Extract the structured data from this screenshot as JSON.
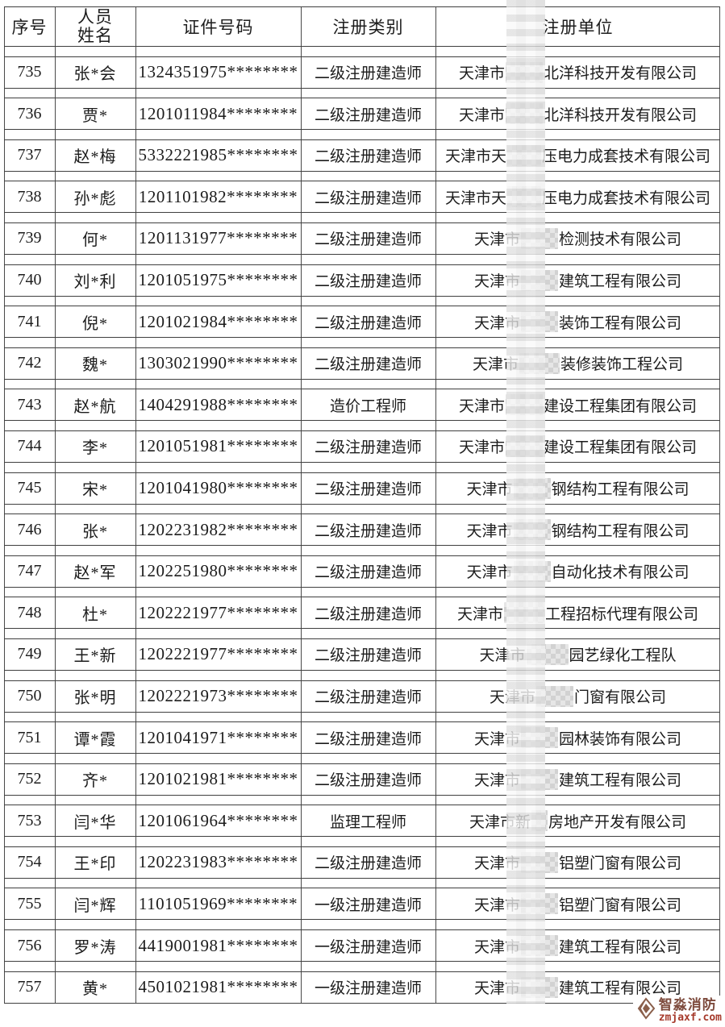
{
  "table": {
    "columns": [
      "序号",
      "人员\n姓名",
      "证件号码",
      "注册类别",
      "注册单位"
    ],
    "rows": [
      {
        "no": "735",
        "name": "张*会",
        "id": "1324351975********",
        "category": "二级注册建造师",
        "unit_prefix": "天津市",
        "unit_masked": true,
        "unit_suffix": "北洋科技开发有限公司",
        "blur_w": 46
      },
      {
        "no": "736",
        "name": "贾*",
        "id": "1201011984********",
        "category": "二级注册建造师",
        "unit_prefix": "天津市",
        "unit_masked": true,
        "unit_suffix": "北洋科技开发有限公司",
        "blur_w": 46
      },
      {
        "no": "737",
        "name": "赵*梅",
        "id": "5332221985********",
        "category": "二级注册建造师",
        "unit_prefix": "天津市天",
        "unit_masked": true,
        "unit_suffix": "压电力成套技术有限公司",
        "blur_w": 42
      },
      {
        "no": "738",
        "name": "孙*彪",
        "id": "1201101982********",
        "category": "二级注册建造师",
        "unit_prefix": "天津市天",
        "unit_masked": true,
        "unit_suffix": "压电力成套技术有限公司",
        "blur_w": 42
      },
      {
        "no": "739",
        "name": "何*",
        "id": "1201131977********",
        "category": "二级注册建造师",
        "unit_prefix": "天津市",
        "unit_masked": true,
        "unit_suffix": "检测技术有限公司",
        "blur_w": 46
      },
      {
        "no": "740",
        "name": "刘*利",
        "id": "1201051975********",
        "category": "二级注册建造师",
        "unit_prefix": "天津市",
        "unit_masked": true,
        "unit_suffix": "建筑工程有限公司",
        "blur_w": 46
      },
      {
        "no": "741",
        "name": "倪*",
        "id": "1201021984********",
        "category": "二级注册建造师",
        "unit_prefix": "天津市",
        "unit_masked": true,
        "unit_suffix": "装饰工程有限公司",
        "blur_w": 46
      },
      {
        "no": "742",
        "name": "魏*",
        "id": "1303021990********",
        "category": "二级注册建造师",
        "unit_prefix": "天津市",
        "unit_masked": true,
        "unit_suffix": "装修装饰工程公司",
        "blur_w": 50
      },
      {
        "no": "743",
        "name": "赵*航",
        "id": "1404291988********",
        "category": "造价工程师",
        "unit_prefix": "天津市",
        "unit_masked": true,
        "unit_suffix": "建设工程集团有限公司",
        "blur_w": 46
      },
      {
        "no": "744",
        "name": "李*",
        "id": "1201051981********",
        "category": "二级注册建造师",
        "unit_prefix": "天津市",
        "unit_masked": true,
        "unit_suffix": "建设工程集团有限公司",
        "blur_w": 46
      },
      {
        "no": "745",
        "name": "宋*",
        "id": "1201041980********",
        "category": "二级注册建造师",
        "unit_prefix": "天津市",
        "unit_masked": true,
        "unit_suffix": "钢结构工程有限公司",
        "blur_w": 46
      },
      {
        "no": "746",
        "name": "张*",
        "id": "1202231982********",
        "category": "二级注册建造师",
        "unit_prefix": "天津市",
        "unit_masked": true,
        "unit_suffix": "钢结构工程有限公司",
        "blur_w": 46
      },
      {
        "no": "747",
        "name": "赵*军",
        "id": "1202251980********",
        "category": "二级注册建造师",
        "unit_prefix": "天津市",
        "unit_masked": true,
        "unit_suffix": "自动化技术有限公司",
        "blur_w": 46
      },
      {
        "no": "748",
        "name": "杜*",
        "id": "1202221977********",
        "category": "二级注册建造师",
        "unit_prefix": "天津市",
        "unit_masked": true,
        "unit_suffix": "工程招标代理有限公司",
        "blur_w": 50
      },
      {
        "no": "749",
        "name": "王*新",
        "id": "1202221977********",
        "category": "二级注册建造师",
        "unit_prefix": "天津市",
        "unit_masked": true,
        "unit_suffix": "园艺绿化工程队",
        "blur_w": 52
      },
      {
        "no": "750",
        "name": "张*明",
        "id": "1202221973********",
        "category": "二级注册建造师",
        "unit_prefix": "天津市",
        "unit_masked": true,
        "unit_suffix": "门窗有限公司",
        "blur_w": 46
      },
      {
        "no": "751",
        "name": "谭*霞",
        "id": "1201041971********",
        "category": "二级注册建造师",
        "unit_prefix": "天津市",
        "unit_masked": true,
        "unit_suffix": "园林装饰有限公司",
        "blur_w": 46
      },
      {
        "no": "752",
        "name": "齐*",
        "id": "1201021981********",
        "category": "二级注册建造师",
        "unit_prefix": "天津市",
        "unit_masked": true,
        "unit_suffix": "建筑工程有限公司",
        "blur_w": 46
      },
      {
        "no": "753",
        "name": "闫*华",
        "id": "1201061964********",
        "category": "监理工程师",
        "unit_prefix": "天津市新",
        "unit_masked": true,
        "unit_suffix": "房地产开发有限公司",
        "blur_w": 20
      },
      {
        "no": "754",
        "name": "王*印",
        "id": "1202231983********",
        "category": "二级注册建造师",
        "unit_prefix": "天津市",
        "unit_masked": true,
        "unit_suffix": "铝塑门窗有限公司",
        "blur_w": 46
      },
      {
        "no": "755",
        "name": "闫*辉",
        "id": "1101051969********",
        "category": "一级注册建造师",
        "unit_prefix": "天津市",
        "unit_masked": true,
        "unit_suffix": "铝塑门窗有限公司",
        "blur_w": 46
      },
      {
        "no": "756",
        "name": "罗*涛",
        "id": "4419001981********",
        "category": "一级注册建造师",
        "unit_prefix": "天津市",
        "unit_masked": true,
        "unit_suffix": "建筑工程有限公司",
        "blur_w": 46
      },
      {
        "no": "757",
        "name": "黄*",
        "id": "4501021981********",
        "category": "一级注册建造师",
        "unit_prefix": "天津市",
        "unit_masked": true,
        "unit_suffix": "建筑工程有限公司",
        "blur_w": 46
      }
    ]
  },
  "watermark": {
    "brand": "智淼消防",
    "site": "zmjaxf.com"
  },
  "colors": {
    "grid_line": "#3f3f3f",
    "text": "#1c1c1c",
    "watermark_brand": "#7d4a3c",
    "watermark_site": "#a63a2b",
    "mosaic": "#e6e6e6"
  }
}
